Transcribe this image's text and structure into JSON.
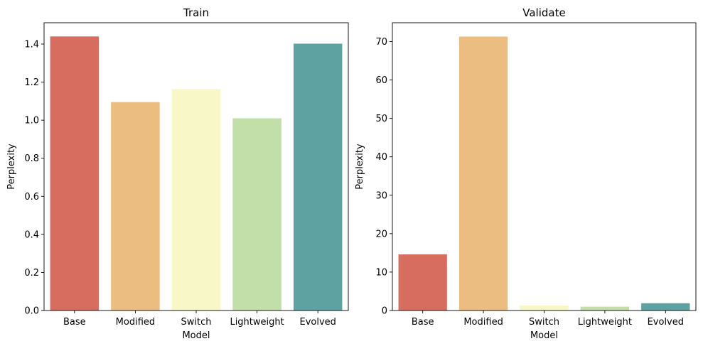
{
  "chart_data": [
    {
      "type": "bar",
      "title": "Train",
      "xlabel": "Model",
      "ylabel": "Perplexity",
      "categories": [
        "Base",
        "Modified",
        "Switch",
        "Lightweight",
        "Evolved"
      ],
      "values": [
        1.44,
        1.095,
        1.163,
        1.01,
        1.402
      ],
      "ylim": [
        0,
        1.512
      ],
      "yticks": [
        0.0,
        0.2,
        0.4,
        0.6,
        0.8,
        1.0,
        1.2,
        1.4
      ],
      "ytick_labels": [
        "0.0",
        "0.2",
        "0.4",
        "0.6",
        "0.8",
        "1.0",
        "1.2",
        "1.4"
      ]
    },
    {
      "type": "bar",
      "title": "Validate",
      "xlabel": "Model",
      "ylabel": "Perplexity",
      "categories": [
        "Base",
        "Modified",
        "Switch",
        "Lightweight",
        "Evolved"
      ],
      "values": [
        14.6,
        71.3,
        1.3,
        1.0,
        1.9
      ],
      "ylim": [
        0,
        74.9
      ],
      "yticks": [
        0,
        10,
        20,
        30,
        40,
        50,
        60,
        70
      ],
      "ytick_labels": [
        "0",
        "10",
        "20",
        "30",
        "40",
        "50",
        "60",
        "70"
      ]
    }
  ],
  "colors": [
    "#d66d5e",
    "#ebbd80",
    "#f7f7c7",
    "#c2dea9",
    "#5ea3a2"
  ],
  "axis_color": "#000000"
}
